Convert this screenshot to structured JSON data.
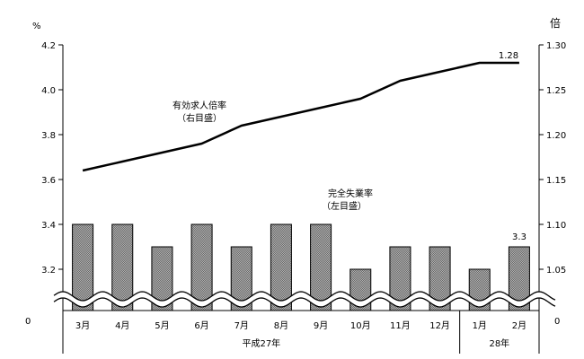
{
  "chart_data": {
    "type": "bar",
    "categories": [
      "3月",
      "4月",
      "5月",
      "6月",
      "7月",
      "8月",
      "9月",
      "10月",
      "11月",
      "12月",
      "1月",
      "2月"
    ],
    "year_groups": [
      {
        "label": "平成27年",
        "span": 10
      },
      {
        "label": "28年",
        "span": 2
      }
    ],
    "series": [
      {
        "name": "完全失業率",
        "name_line2": "（左目盛）",
        "type": "bar",
        "axis": "left",
        "values": [
          3.4,
          3.4,
          3.3,
          3.4,
          3.3,
          3.4,
          3.4,
          3.2,
          3.3,
          3.3,
          3.2,
          3.3
        ]
      },
      {
        "name": "有効求人倍率",
        "name_line2": "（右目盛）",
        "type": "line",
        "axis": "right",
        "values": [
          1.16,
          1.17,
          1.18,
          1.19,
          1.21,
          1.22,
          1.23,
          1.24,
          1.26,
          1.27,
          1.28,
          1.28
        ]
      }
    ],
    "left_axis": {
      "unit": "%",
      "range": [
        3.0,
        4.2
      ],
      "ticks": [
        "4.2",
        "4.0",
        "3.8",
        "3.6",
        "3.4",
        "3.2"
      ],
      "tick_values": [
        4.2,
        4.0,
        3.8,
        3.6,
        3.4,
        3.2
      ],
      "zero_label": "0"
    },
    "right_axis": {
      "unit": "倍",
      "range": [
        1.0,
        1.3
      ],
      "ticks": [
        "1.30",
        "1.25",
        "1.20",
        "1.15",
        "1.10",
        "1.05"
      ],
      "tick_values": [
        1.3,
        1.25,
        1.2,
        1.15,
        1.1,
        1.05
      ],
      "zero_label": "0"
    },
    "data_labels": {
      "line_last": "1.28",
      "bar_last": "3.3"
    },
    "axis_break": true,
    "grid": false,
    "colors": {
      "bar_fill": "#9a9a9a",
      "bar_stroke": "#000000",
      "line": "#000000"
    }
  }
}
